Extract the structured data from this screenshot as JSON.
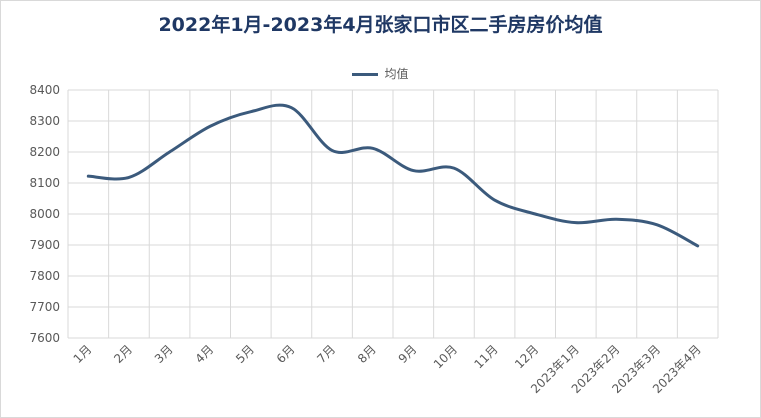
{
  "chart_data": {
    "type": "line",
    "title": "2022年1月-2023年4月张家口市区二手房房价均值",
    "categories": [
      "1月",
      "2月",
      "3月",
      "4月",
      "5月",
      "6月",
      "7月",
      "8月",
      "9月",
      "10月",
      "11月",
      "12月",
      "2023年1月",
      "2023年2月",
      "2023年3月",
      "2023年4月"
    ],
    "series": [
      {
        "name": "均值",
        "values": [
          8122,
          8118,
          8200,
          8283,
          8330,
          8343,
          8205,
          8212,
          8140,
          8148,
          8045,
          8000,
          7972,
          7983,
          7965,
          7897
        ]
      }
    ],
    "ylim": [
      7600,
      8400
    ],
    "yticks": [
      7600,
      7700,
      7800,
      7900,
      8000,
      8100,
      8200,
      8300,
      8400
    ],
    "grid": true,
    "legend_position": "top",
    "colors": {
      "series": "#3b5a7c",
      "grid": "#d9d9d9",
      "title": "#1f3864",
      "text": "#595959"
    }
  }
}
